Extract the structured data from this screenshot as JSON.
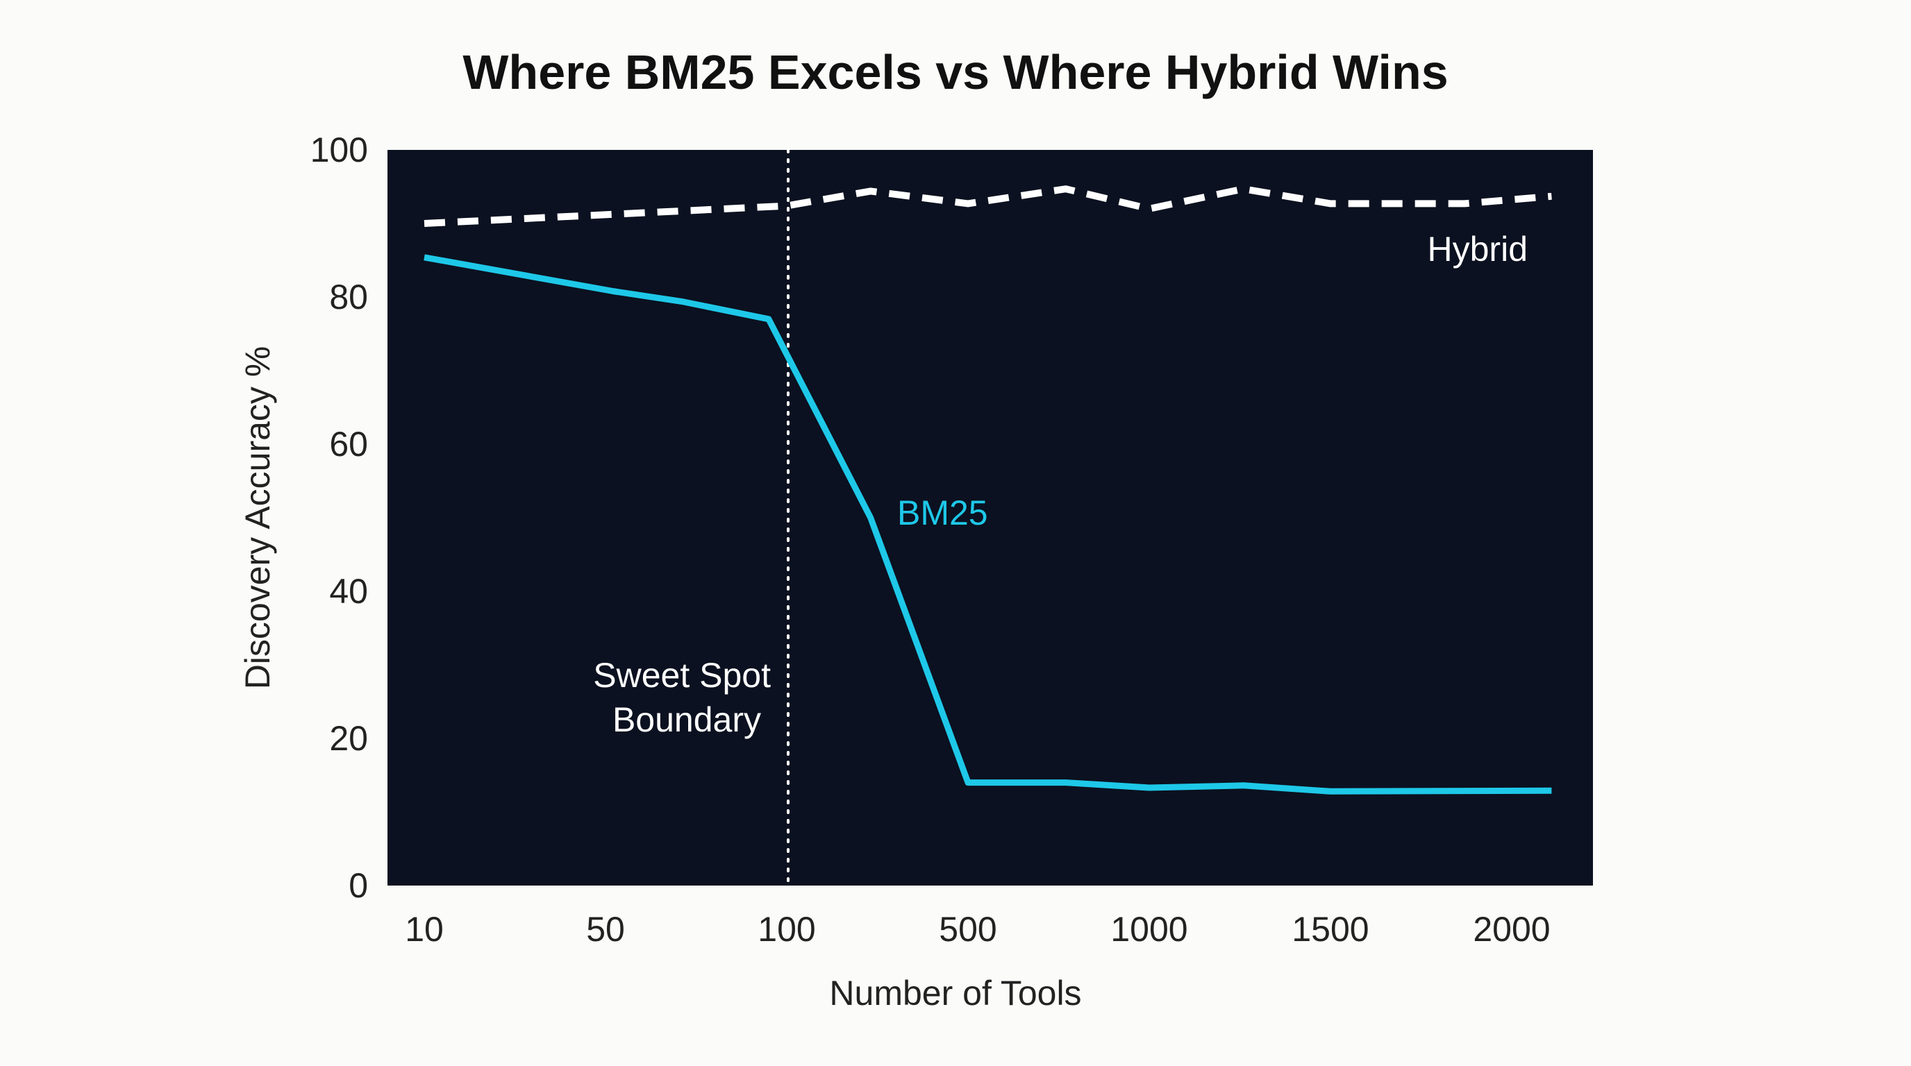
{
  "chart_data": {
    "type": "line",
    "title": "Where BM25 Excels vs Where Hybrid Wins",
    "xlabel": "Number of Tools",
    "ylabel": "Discovery Accuracy %",
    "x_ticks": [
      10,
      50,
      100,
      500,
      1000,
      1500,
      2000
    ],
    "x_scale": "categorical (evenly spaced ticks)",
    "y_ticks": [
      0,
      20,
      40,
      60,
      80,
      100
    ],
    "ylim": [
      0,
      100
    ],
    "grid": false,
    "background": "#0b1120",
    "series": [
      {
        "name": "Hybrid",
        "color": "#ffffff",
        "style": "dashed",
        "points": [
          [
            10,
            90
          ],
          [
            100,
            92.4
          ],
          [
            285,
            94.4
          ],
          [
            500,
            92.7
          ],
          [
            770,
            94.7
          ],
          [
            1000,
            92
          ],
          [
            1260,
            94.7
          ],
          [
            1500,
            92.7
          ],
          [
            1870,
            92.7
          ],
          [
            2110,
            93.7
          ]
        ]
      },
      {
        "name": "BM25",
        "color": "#1ec8e8",
        "style": "solid",
        "points": [
          [
            10,
            85.4
          ],
          [
            52,
            80.8
          ],
          [
            71,
            79.4
          ],
          [
            95,
            77
          ],
          [
            285,
            50
          ],
          [
            500,
            14
          ],
          [
            770,
            14
          ],
          [
            1000,
            13.3
          ],
          [
            1260,
            13.6
          ],
          [
            1500,
            12.8
          ],
          [
            2110,
            12.9
          ]
        ]
      }
    ],
    "annotations": [
      {
        "type": "vline",
        "x": 100,
        "style": "dotted",
        "color": "#ffffff",
        "label_lines": [
          "Sweet Spot",
          "Boundary"
        ]
      }
    ]
  }
}
